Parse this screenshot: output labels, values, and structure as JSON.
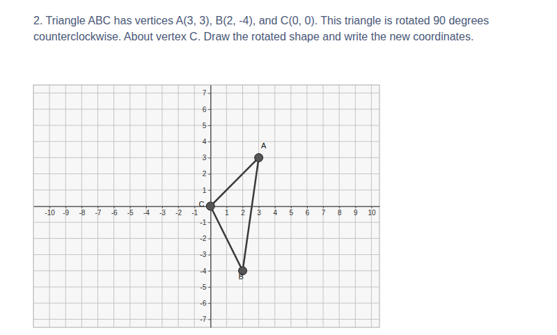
{
  "chart_data": {
    "type": "polygon",
    "title": "2. Triangle ABC has vertices A(3, 3), B(2, -4), and C(0, 0). This triangle is rotated 90 degrees counterclockwise. About vertex C. Draw the rotated shape and write the new coordinates.",
    "x": [
      3,
      2,
      0
    ],
    "values": [
      3,
      -4,
      0
    ],
    "color": "#3a3a3a",
    "marker": "circle",
    "line_style": "solid",
    "annotations": [
      {
        "text": "A",
        "x": 3.3,
        "y": 3.7
      },
      {
        "text": "B",
        "x": 1.9,
        "y": -4.4
      },
      {
        "text": "C",
        "x": -0.55,
        "y": 0.1
      }
    ],
    "xlim": [
      -11,
      10.5
    ],
    "xticks": [
      -10,
      -9,
      -8,
      -7,
      -6,
      -5,
      -4,
      -3,
      -2,
      -1,
      1,
      2,
      3,
      4,
      5,
      6,
      7,
      8,
      9,
      10
    ],
    "ylim": [
      -7.5,
      7.5
    ],
    "yticks": [
      -7,
      -6,
      -5,
      -4,
      -3,
      -2,
      -1,
      1,
      2,
      3,
      4,
      5,
      6,
      7
    ],
    "grid": true
  }
}
